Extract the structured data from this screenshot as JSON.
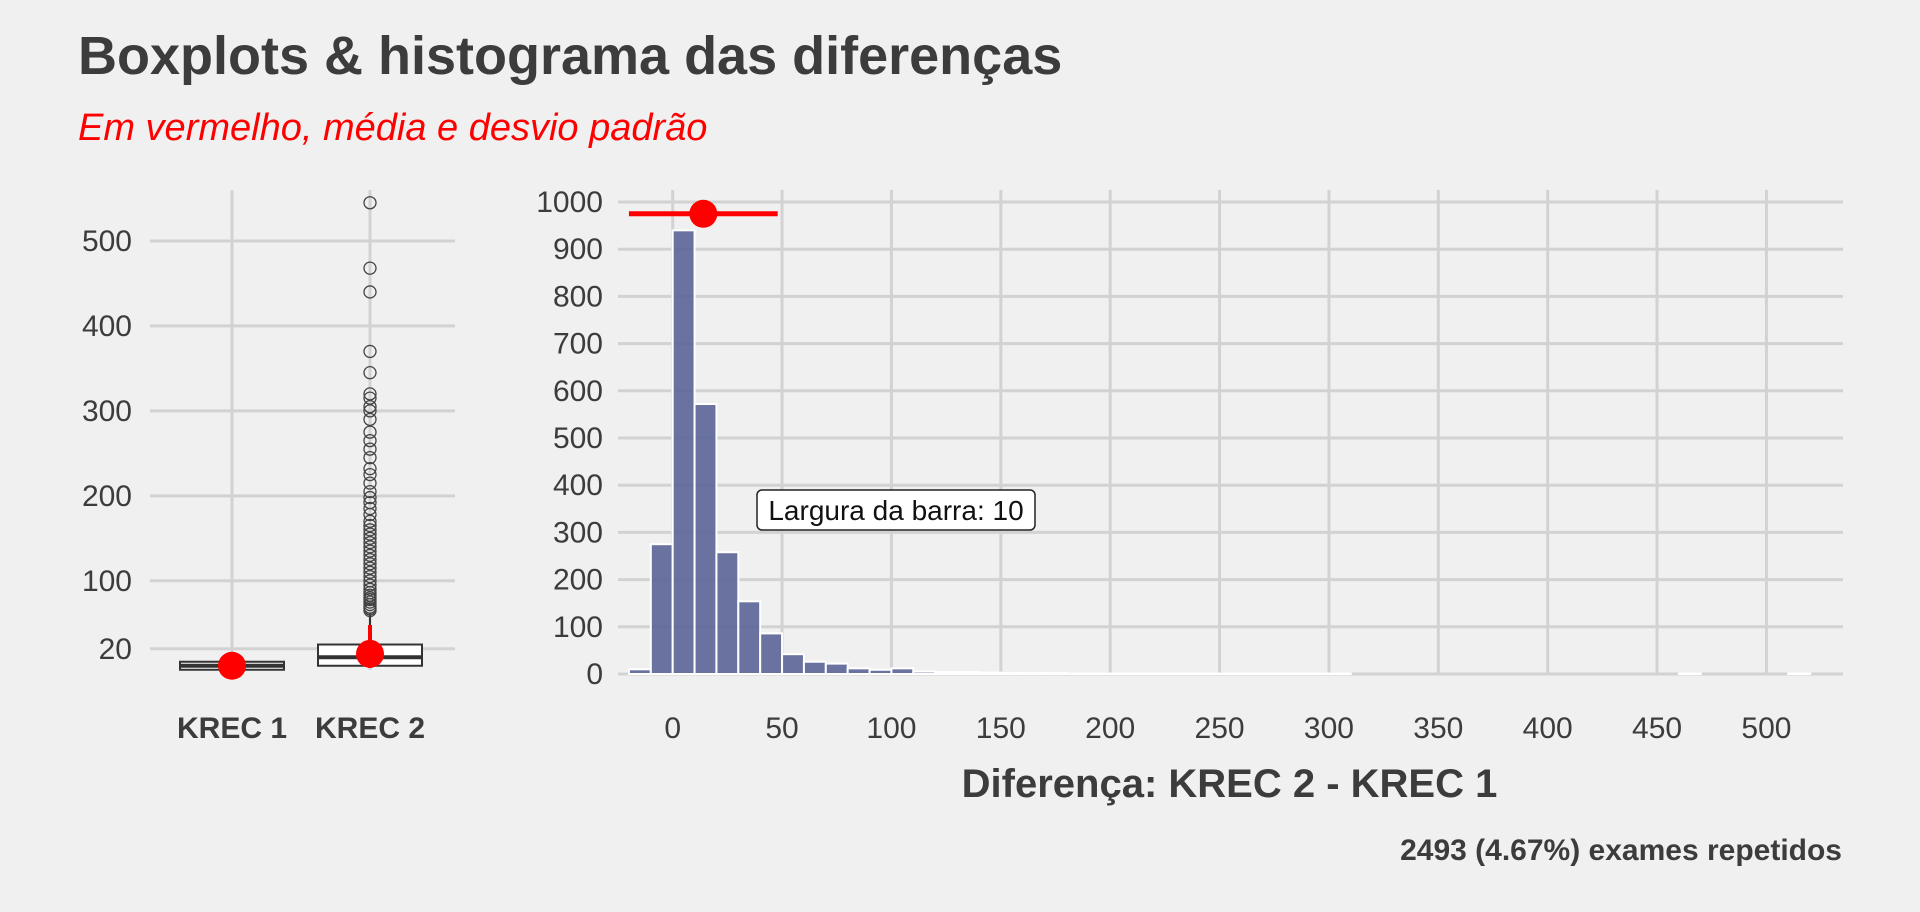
{
  "title": "Boxplots & histograma das diferenças",
  "subtitle": "Em vermelho, média e desvio padrão",
  "caption": "2493 (4.67%) exames repetidos",
  "colors": {
    "background": "#f0f0f0",
    "grid": "#d2d2d2",
    "bar_fill": "#5b6597",
    "mean_sd": "#ff0000",
    "text": "#3c3c3c"
  },
  "chart_data": [
    {
      "type": "boxplot",
      "categories": [
        "KREC 1",
        "KREC 2"
      ],
      "y_ticks": [
        20,
        100,
        200,
        300,
        400,
        500
      ],
      "ylim": [
        -5,
        560
      ],
      "boxes": [
        {
          "name": "KREC 1",
          "min": 0,
          "q1": 0,
          "median": 0,
          "q3": 0,
          "max": 0,
          "outliers": []
        },
        {
          "name": "KREC 2",
          "min": 0,
          "q1": 0,
          "median": 10,
          "q3": 25,
          "max": 62,
          "outliers": [
            65,
            67,
            69,
            72,
            75,
            78,
            80,
            83,
            86,
            90,
            95,
            100,
            105,
            110,
            115,
            120,
            125,
            130,
            135,
            140,
            145,
            150,
            155,
            160,
            165,
            170,
            178,
            185,
            192,
            198,
            205,
            215,
            225,
            232,
            245,
            255,
            265,
            275,
            290,
            300,
            305,
            315,
            320,
            345,
            370,
            440,
            468,
            545
          ]
        }
      ],
      "mean_sd": [
        {
          "name": "KREC 1",
          "mean": 0,
          "sd": 0
        },
        {
          "name": "KREC 2",
          "mean": 14,
          "sd": 34
        }
      ]
    },
    {
      "type": "bar",
      "xlabel": "Diferença: KREC 2 - KREC 1",
      "annotation": "Largura da barra: 10",
      "binwidth": 10,
      "x_ticks": [
        0,
        50,
        100,
        150,
        200,
        250,
        300,
        350,
        400,
        450,
        500
      ],
      "y_ticks": [
        0,
        100,
        200,
        300,
        400,
        500,
        600,
        700,
        800,
        900,
        1000
      ],
      "xlim": [
        -25,
        535
      ],
      "ylim": [
        0,
        1000
      ],
      "bins": [
        -15,
        -5,
        5,
        15,
        25,
        35,
        45,
        55,
        65,
        75,
        85,
        95,
        105,
        115,
        125,
        135,
        145,
        155,
        165,
        175,
        185,
        195,
        205,
        215,
        225,
        235,
        245,
        255,
        265,
        275,
        285,
        295,
        305,
        315,
        325,
        335,
        345,
        355,
        365,
        375,
        385,
        395,
        405,
        415,
        425,
        435,
        445,
        455,
        465,
        475,
        485,
        495,
        505,
        515,
        525
      ],
      "values": [
        10,
        275,
        940,
        572,
        258,
        154,
        86,
        42,
        26,
        22,
        12,
        9,
        12,
        5,
        4,
        4,
        3,
        2,
        2,
        2,
        1,
        1,
        1,
        1,
        1,
        1,
        1,
        1,
        1,
        1,
        1,
        1,
        1,
        0,
        0,
        0,
        0,
        0,
        0,
        0,
        0,
        0,
        0,
        0,
        0,
        0,
        0,
        0,
        1,
        0,
        0,
        0,
        0,
        1,
        0
      ],
      "mean_sd": {
        "mean": 14,
        "sd": 34,
        "y": 975
      }
    }
  ]
}
